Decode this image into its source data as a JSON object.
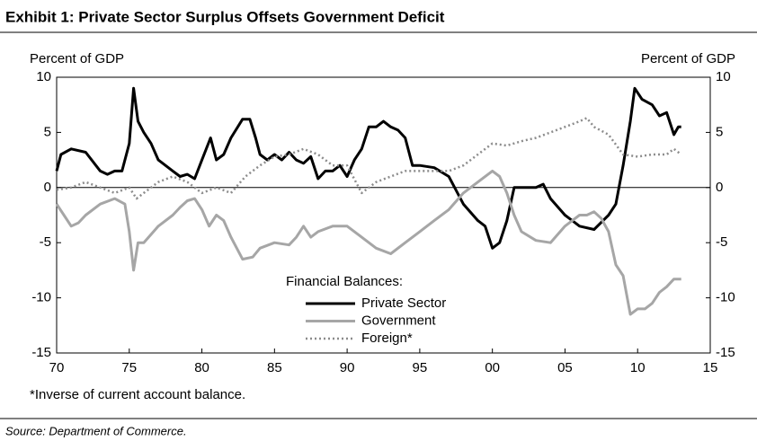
{
  "chart_data": {
    "type": "line",
    "title": "Exhibit 1: Private Sector Surplus Offsets Government Deficit",
    "ylabel": "Percent of GDP",
    "y2label": "Percent of GDP",
    "legend_title": "Financial Balances:",
    "footnote": "*Inverse of current account balance.",
    "source": "Source: Department of Commerce.",
    "xlim": [
      1970,
      2015
    ],
    "xticks": [
      {
        "value": 1970,
        "label": "70"
      },
      {
        "value": 1975,
        "label": "75"
      },
      {
        "value": 1980,
        "label": "80"
      },
      {
        "value": 1985,
        "label": "85"
      },
      {
        "value": 1990,
        "label": "90"
      },
      {
        "value": 1995,
        "label": "95"
      },
      {
        "value": 2000,
        "label": "00"
      },
      {
        "value": 2005,
        "label": "05"
      },
      {
        "value": 2010,
        "label": "10"
      },
      {
        "value": 2015,
        "label": "15"
      }
    ],
    "ylim": [
      -15,
      10
    ],
    "yticks": [
      10,
      5,
      0,
      -5,
      -10,
      -15
    ],
    "y2lim": [
      -15,
      10
    ],
    "y2ticks": [
      10,
      5,
      0,
      -5,
      -10,
      -15
    ],
    "series": [
      {
        "name": "Private Sector",
        "color": "#000000",
        "style": "solid",
        "x": [
          1970,
          1970.3,
          1971,
          1972,
          1973,
          1973.5,
          1974,
          1974.5,
          1975,
          1975.3,
          1975.6,
          1976,
          1976.5,
          1977,
          1978,
          1978.5,
          1979,
          1979.5,
          1980,
          1980.6,
          1981,
          1981.5,
          1982,
          1982.8,
          1983.3,
          1983.7,
          1984,
          1984.5,
          1985,
          1985.5,
          1986,
          1986.5,
          1987,
          1987.5,
          1988,
          1988.5,
          1989,
          1989.5,
          1990,
          1990.5,
          1991,
          1991.5,
          1992,
          1992.5,
          1993,
          1993.5,
          1994,
          1994.5,
          1995,
          1996,
          1997,
          1998,
          1999,
          1999.5,
          2000,
          2000.5,
          2001,
          2001.5,
          2002,
          2003,
          2003.5,
          2004,
          2005,
          2005.5,
          2006,
          2007,
          2008,
          2008.5,
          2009,
          2009.5,
          2009.8,
          2010.3,
          2011,
          2011.5,
          2012,
          2012.5,
          2012.8,
          2013
        ],
        "values": [
          1.5,
          3,
          3.5,
          3.2,
          1.5,
          1.2,
          1.5,
          1.5,
          4,
          9,
          6,
          5,
          4,
          2.5,
          1.5,
          1,
          1.2,
          0.8,
          2.5,
          4.5,
          2.5,
          3,
          4.5,
          6.2,
          6.2,
          4.5,
          3,
          2.5,
          3,
          2.5,
          3.2,
          2.5,
          2.2,
          2.8,
          0.8,
          1.5,
          1.5,
          2,
          1,
          2.5,
          3.5,
          5.5,
          5.5,
          6,
          5.5,
          5.2,
          4.5,
          2,
          2,
          1.8,
          1,
          -1.5,
          -3,
          -3.5,
          -5.5,
          -5,
          -3,
          0,
          0,
          0,
          0.3,
          -1,
          -2.5,
          -3,
          -3.5,
          -3.8,
          -2.5,
          -1.5,
          2,
          6,
          9,
          8,
          7.5,
          6.5,
          6.8,
          4.8,
          5.5,
          5.5
        ]
      },
      {
        "name": "Government",
        "color": "#a6a6a6",
        "style": "solid",
        "x": [
          1970,
          1970.5,
          1971,
          1971.5,
          1972,
          1973,
          1974,
          1974.7,
          1975,
          1975.3,
          1975.6,
          1976,
          1977,
          1978,
          1978.5,
          1979,
          1979.5,
          1980,
          1980.5,
          1981,
          1981.5,
          1982,
          1982.8,
          1983.5,
          1984,
          1985,
          1986,
          1986.5,
          1987,
          1987.5,
          1988,
          1989,
          1990,
          1991,
          1992,
          1993,
          1994,
          1995,
          1996,
          1997,
          1998,
          1999,
          2000,
          2000.5,
          2001,
          2001.5,
          2002,
          2003,
          2004,
          2005,
          2006,
          2006.5,
          2007,
          2007.5,
          2008,
          2008.5,
          2009,
          2009.5,
          2010,
          2010.5,
          2011,
          2011.5,
          2012,
          2012.5,
          2013
        ],
        "values": [
          -1.5,
          -2.5,
          -3.5,
          -3.2,
          -2.5,
          -1.5,
          -1,
          -1.5,
          -4,
          -7.5,
          -5,
          -5,
          -3.5,
          -2.5,
          -1.8,
          -1.2,
          -1,
          -2,
          -3.5,
          -2.5,
          -3,
          -4.5,
          -6.5,
          -6.3,
          -5.5,
          -5,
          -5.2,
          -4.5,
          -3.5,
          -4.5,
          -4,
          -3.5,
          -3.5,
          -4.5,
          -5.5,
          -6,
          -5,
          -4,
          -3,
          -2,
          -0.5,
          0.5,
          1.5,
          1,
          -0.5,
          -2.5,
          -4,
          -4.8,
          -5,
          -3.5,
          -2.5,
          -2.5,
          -2.2,
          -2.8,
          -4,
          -7,
          -8,
          -11.5,
          -11,
          -11,
          -10.5,
          -9.5,
          -9,
          -8.3,
          -8.3
        ]
      },
      {
        "name": "Foreign*",
        "color": "#8c8c8c",
        "style": "dotted",
        "x": [
          1970,
          1971,
          1972,
          1973,
          1974,
          1975,
          1975.5,
          1976,
          1977,
          1978,
          1979,
          1980,
          1981,
          1982,
          1983,
          1984,
          1985,
          1986,
          1987,
          1988,
          1989,
          1990,
          1991,
          1992,
          1993,
          1994,
          1995,
          1996,
          1997,
          1998,
          1999,
          2000,
          2001,
          2002,
          2003,
          2004,
          2005,
          2006,
          2006.5,
          2007,
          2008,
          2009,
          2010,
          2011,
          2012,
          2012.5,
          2013
        ],
        "values": [
          -0.2,
          0,
          0.5,
          0,
          -0.5,
          0,
          -1,
          -0.5,
          0.5,
          1,
          0.5,
          -0.5,
          0,
          -0.5,
          1,
          2,
          2.8,
          3,
          3.5,
          3,
          2,
          2,
          -0.5,
          0.5,
          1,
          1.5,
          1.5,
          1.5,
          1.5,
          2,
          3,
          4,
          3.8,
          4.2,
          4.5,
          5,
          5.5,
          6,
          6.3,
          5.5,
          4.8,
          3,
          2.8,
          3,
          3,
          3.5,
          3
        ]
      }
    ]
  }
}
